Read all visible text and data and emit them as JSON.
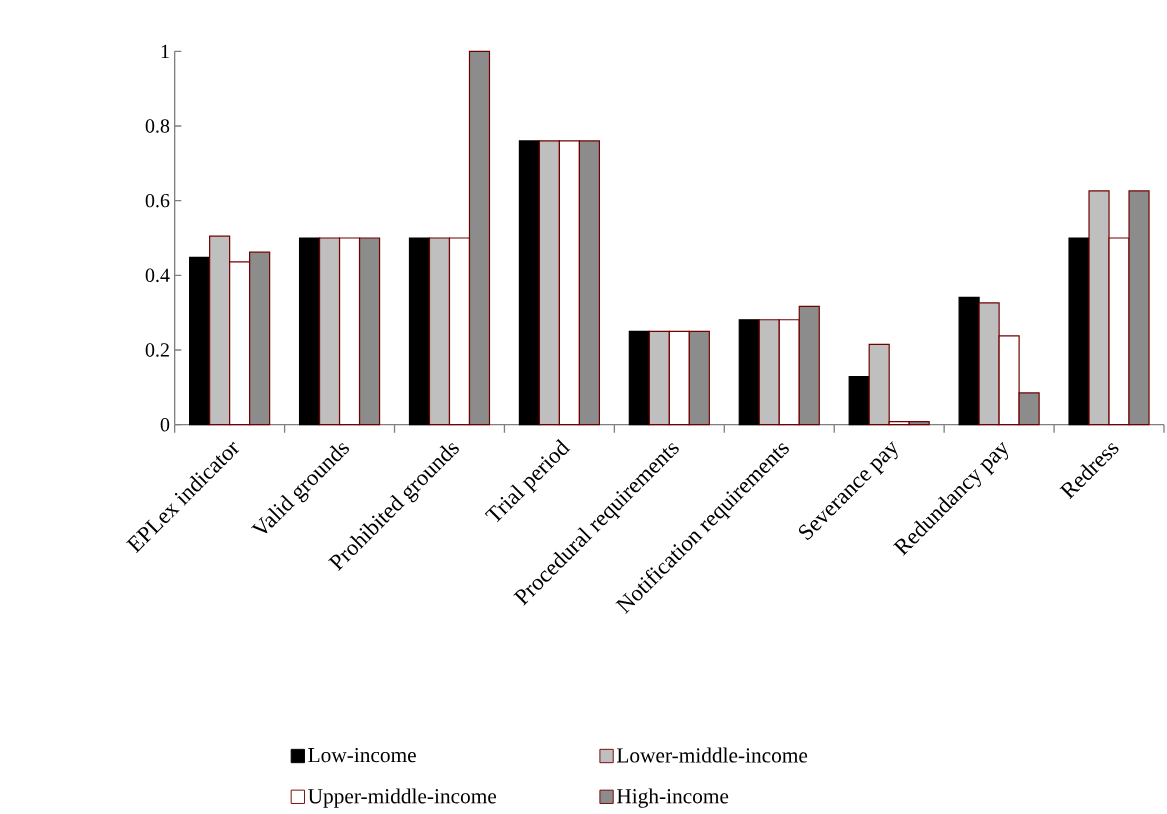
{
  "chart_data": {
    "type": "bar",
    "categories": [
      "EPLex  indicator",
      "Valid grounds",
      "Prohibited grounds",
      "Trial period",
      "Procedural requirements",
      "Notification requirements",
      "Severance pay",
      "Redundancy pay",
      "Redress"
    ],
    "series": [
      {
        "name": "Low-income",
        "color": "#000000",
        "values": [
          0.448,
          0.5,
          0.5,
          0.76,
          0.25,
          0.281,
          0.129,
          0.341,
          0.5
        ]
      },
      {
        "name": "Lower-middle-income",
        "color": "#bfbfbf",
        "values": [
          0.505,
          0.5,
          0.5,
          0.76,
          0.25,
          0.281,
          0.215,
          0.326,
          0.626
        ]
      },
      {
        "name": "Upper-middle-income",
        "color": "#ffffff",
        "values": [
          0.436,
          0.5,
          0.5,
          0.76,
          0.25,
          0.281,
          0.008,
          0.238,
          0.5
        ]
      },
      {
        "name": "High-income",
        "color": "#8c8c8c",
        "values": [
          0.462,
          0.5,
          1,
          0.76,
          0.25,
          0.317,
          0.008,
          0.085,
          0.626
        ]
      }
    ],
    "ylim": [
      0,
      1
    ],
    "yticks": [
      0,
      0.2,
      0.4,
      0.6,
      0.8,
      1
    ],
    "grid": false,
    "legend": "bottom"
  }
}
